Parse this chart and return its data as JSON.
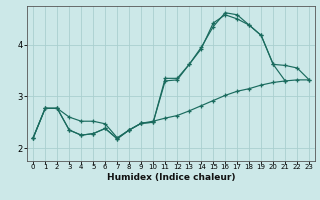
{
  "xlabel": "Humidex (Indice chaleur)",
  "background_color": "#cce8e8",
  "grid_color": "#aacfcf",
  "line_color": "#1a6b5e",
  "xlim": [
    -0.5,
    23.5
  ],
  "ylim": [
    1.75,
    4.75
  ],
  "xticks": [
    0,
    1,
    2,
    3,
    4,
    5,
    6,
    7,
    8,
    9,
    10,
    11,
    12,
    13,
    14,
    15,
    16,
    17,
    18,
    19,
    20,
    21,
    22,
    23
  ],
  "yticks": [
    2,
    3,
    4
  ],
  "series1_x": [
    0,
    1,
    2,
    3,
    4,
    5,
    6,
    7,
    8,
    9,
    10,
    11,
    12,
    13,
    14,
    15,
    16,
    17,
    18,
    19,
    20,
    21,
    22,
    23
  ],
  "series1_y": [
    2.2,
    2.77,
    2.77,
    2.6,
    2.52,
    2.52,
    2.47,
    2.2,
    2.35,
    2.48,
    2.52,
    2.58,
    2.63,
    2.72,
    2.82,
    2.92,
    3.02,
    3.1,
    3.15,
    3.22,
    3.27,
    3.3,
    3.32,
    3.32
  ],
  "series2_x": [
    0,
    1,
    2,
    3,
    4,
    5,
    6,
    7,
    8,
    9,
    10,
    11,
    12,
    13,
    14,
    15,
    16,
    17,
    18,
    19,
    20,
    21
  ],
  "series2_y": [
    2.2,
    2.77,
    2.77,
    2.35,
    2.25,
    2.28,
    2.38,
    2.18,
    2.35,
    2.48,
    2.5,
    3.3,
    3.32,
    3.62,
    3.92,
    4.42,
    4.58,
    4.5,
    4.38,
    4.18,
    3.62,
    3.3
  ],
  "series3_x": [
    0,
    1,
    2,
    3,
    4,
    5,
    6,
    7,
    8,
    9,
    10,
    11,
    12,
    13,
    14,
    15,
    16,
    17,
    18,
    19,
    20,
    21,
    22,
    23
  ],
  "series3_y": [
    2.2,
    2.77,
    2.77,
    2.35,
    2.25,
    2.28,
    2.38,
    2.18,
    2.35,
    2.48,
    2.5,
    3.35,
    3.35,
    3.62,
    3.95,
    4.35,
    4.62,
    4.58,
    4.38,
    4.18,
    3.62,
    3.6,
    3.55,
    3.32
  ]
}
